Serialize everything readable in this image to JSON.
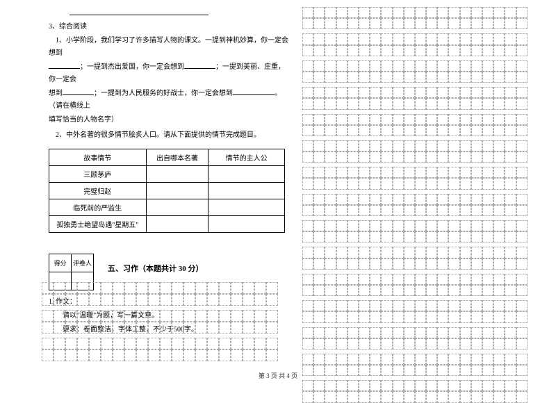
{
  "q3": {
    "title": "3、综合阅读",
    "line1a": "1、小学阶段，我们学习了许多描写人物的课文。一提到神机妙算，你一定会想到",
    "line2a": "；一提到杰出爱国，你一定会想到",
    "line2b": "；一提到美丽、庄重，你一定会",
    "line3a": "想到",
    "line3b": "；一提到为人民服务的好战士，你一定会想到",
    "line3c": "。（请在横线上",
    "line4": "填写恰当的人物名字）",
    "q2": "2、中外名著的很多情节脍炙人口。请从下面提供的情节完成题目。"
  },
  "table": {
    "headers": [
      "故事情节",
      "出自哪本名著",
      "情节的主人公"
    ],
    "rows": [
      [
        "三顾茅庐",
        "",
        ""
      ],
      [
        "完璧归赵",
        "",
        ""
      ],
      [
        "临死前的严监生",
        "",
        ""
      ],
      [
        "孤独勇士绝望岛遇\"星期五\"",
        "",
        ""
      ]
    ]
  },
  "scoreBox": {
    "c1": "得分",
    "c2": "评卷人"
  },
  "section5": {
    "title": "五、习作（本题共计 30 分）",
    "q1": "1. 作文：",
    "line1": "请以\"温暖\"为题，写一篇文章。",
    "line2": "要求：卷面整洁，字体工整，不少于500字。"
  },
  "footer": "第 3 页 共 4 页",
  "grid": {
    "leftCols": 20,
    "leftRows": 6,
    "rightCols": 20,
    "rightBlocks": 3,
    "rightRowsPerBlock": 10
  }
}
